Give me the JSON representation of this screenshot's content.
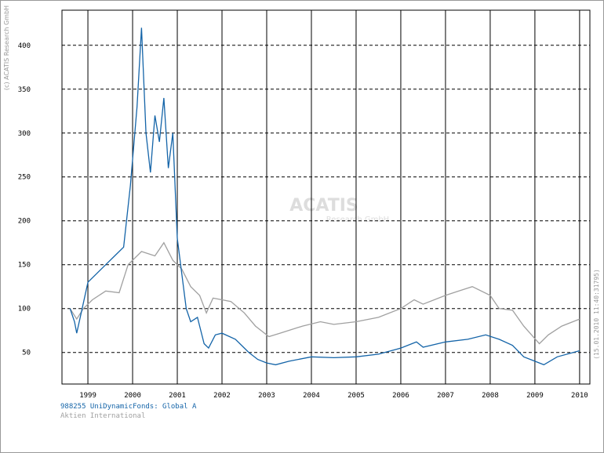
{
  "chart_data": {
    "type": "line",
    "copyright": "(c) ACATIS Research GmbH",
    "timestamp": "(15.01.2010 11:40:31795)",
    "watermark": [
      "ACATIS",
      "Research GmbH"
    ],
    "xlim": [
      1998.42,
      2010.23
    ],
    "xticks": [
      1999,
      2000,
      2001,
      2002,
      2003,
      2004,
      2005,
      2006,
      2007,
      2008,
      2009,
      2010
    ],
    "ylim": [
      14,
      440
    ],
    "yticks": [
      50,
      100,
      150,
      200,
      250,
      300,
      350,
      400
    ],
    "grid": true,
    "series": [
      {
        "name": "988255 UniDynamicFonds: Global A",
        "color": "#1464a8",
        "x": [
          1998.6,
          1998.7,
          1998.75,
          1998.85,
          1999.0,
          1999.2,
          1999.4,
          1999.6,
          1999.8,
          1999.95,
          2000.1,
          2000.2,
          2000.3,
          2000.4,
          2000.5,
          2000.6,
          2000.7,
          2000.8,
          2000.9,
          2001.0,
          2001.1,
          2001.2,
          2001.3,
          2001.45,
          2001.6,
          2001.7,
          2001.85,
          2002.0,
          2002.3,
          2002.5,
          2002.6,
          2002.8,
          2003.0,
          2003.2,
          2003.5,
          2004.0,
          2004.5,
          2005.0,
          2005.5,
          2006.0,
          2006.35,
          2006.5,
          2007.0,
          2007.5,
          2007.9,
          2008.2,
          2008.5,
          2008.75,
          2009.0,
          2009.2,
          2009.5,
          2010.0
        ],
        "values": [
          100,
          85,
          72,
          95,
          130,
          140,
          150,
          160,
          170,
          240,
          330,
          420,
          300,
          255,
          320,
          290,
          340,
          260,
          300,
          180,
          140,
          100,
          85,
          90,
          60,
          55,
          70,
          72,
          65,
          55,
          50,
          42,
          38,
          36,
          40,
          45,
          44,
          45,
          48,
          55,
          62,
          56,
          62,
          65,
          70,
          65,
          58,
          45,
          40,
          36,
          45,
          52
        ]
      },
      {
        "name": "Aktien International",
        "color": "#a0a0a0",
        "x": [
          1998.6,
          1998.75,
          1998.9,
          1999.1,
          1999.4,
          1999.7,
          1999.9,
          2000.2,
          2000.5,
          2000.7,
          2000.9,
          2001.1,
          2001.3,
          2001.5,
          2001.65,
          2001.8,
          2002.2,
          2002.5,
          2002.75,
          2003.05,
          2003.3,
          2003.8,
          2004.2,
          2004.5,
          2005.0,
          2005.5,
          2006.0,
          2006.3,
          2006.5,
          2007.0,
          2007.3,
          2007.6,
          2008.0,
          2008.2,
          2008.5,
          2008.75,
          2009.1,
          2009.3,
          2009.6,
          2010.0
        ],
        "values": [
          100,
          88,
          100,
          110,
          120,
          118,
          150,
          165,
          160,
          175,
          155,
          145,
          125,
          115,
          95,
          112,
          108,
          95,
          80,
          68,
          72,
          80,
          85,
          82,
          85,
          90,
          100,
          110,
          105,
          115,
          120,
          125,
          115,
          100,
          98,
          80,
          60,
          70,
          80,
          88
        ]
      }
    ]
  }
}
